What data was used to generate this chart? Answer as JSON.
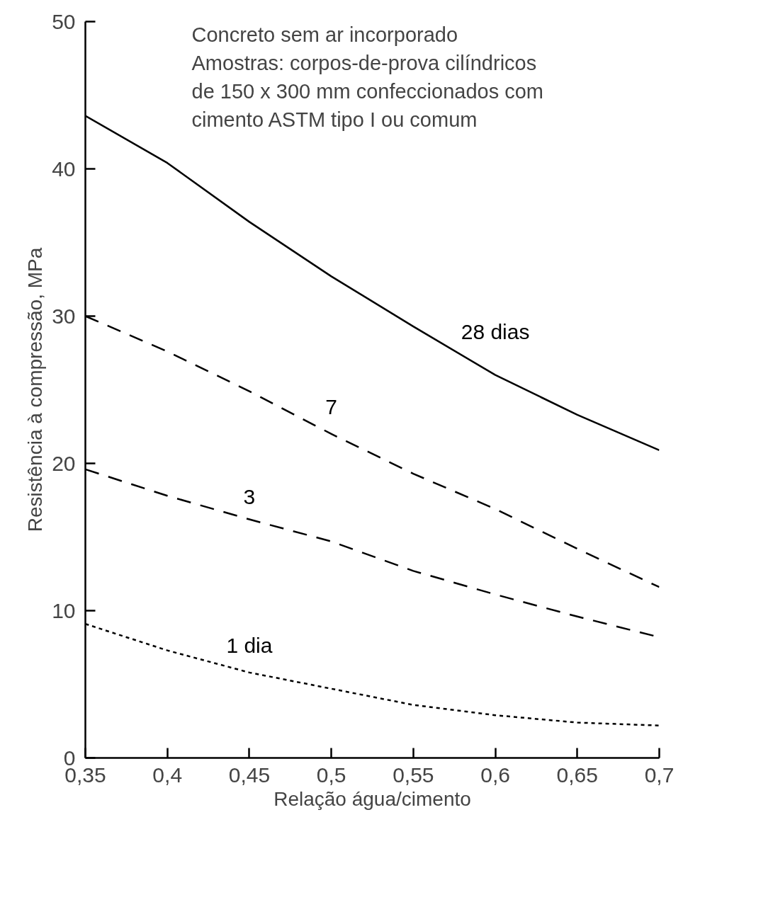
{
  "chart_data": {
    "type": "line",
    "xlabel": "Relação água/cimento",
    "ylabel": "Resistência à compressão, MPa",
    "x": [
      0.35,
      0.4,
      0.45,
      0.5,
      0.55,
      0.6,
      0.65,
      0.7
    ],
    "series": [
      {
        "name": "28 dias",
        "color": "#000000",
        "line_style": "solid",
        "values": [
          43.6,
          40.4,
          36.4,
          32.7,
          29.3,
          26.0,
          23.3,
          20.9
        ]
      },
      {
        "name": "7",
        "color": "#000000",
        "line_style": "dashed",
        "values": [
          30.0,
          27.6,
          24.9,
          22.0,
          19.3,
          16.9,
          14.2,
          11.6
        ]
      },
      {
        "name": "3",
        "color": "#000000",
        "line_style": "dashed",
        "values": [
          19.6,
          17.8,
          16.2,
          14.7,
          12.7,
          11.1,
          9.6,
          8.2
        ]
      },
      {
        "name": "1 dia",
        "color": "#000000",
        "line_style": "dotted",
        "values": [
          9.1,
          7.3,
          5.8,
          4.7,
          3.6,
          2.9,
          2.4,
          2.2
        ]
      }
    ],
    "xlim": [
      0.35,
      0.7
    ],
    "ylim": [
      0,
      50
    ],
    "xticks": [
      {
        "value": 0.35,
        "label": "0,35"
      },
      {
        "value": 0.4,
        "label": "0,4"
      },
      {
        "value": 0.45,
        "label": "0,45"
      },
      {
        "value": 0.5,
        "label": "0,5"
      },
      {
        "value": 0.55,
        "label": "0,55"
      },
      {
        "value": 0.6,
        "label": "0,6"
      },
      {
        "value": 0.65,
        "label": "0,65"
      },
      {
        "value": 0.7,
        "label": "0,7"
      }
    ],
    "yticks": [
      0,
      10,
      20,
      30,
      40,
      50
    ],
    "annotations": [
      "Concreto sem ar incorporado",
      "Amostras: corpos-de-prova cilíndricos",
      "de 150 x 300 mm confeccionados com",
      "cimento ASTM tipo I ou comum"
    ]
  }
}
